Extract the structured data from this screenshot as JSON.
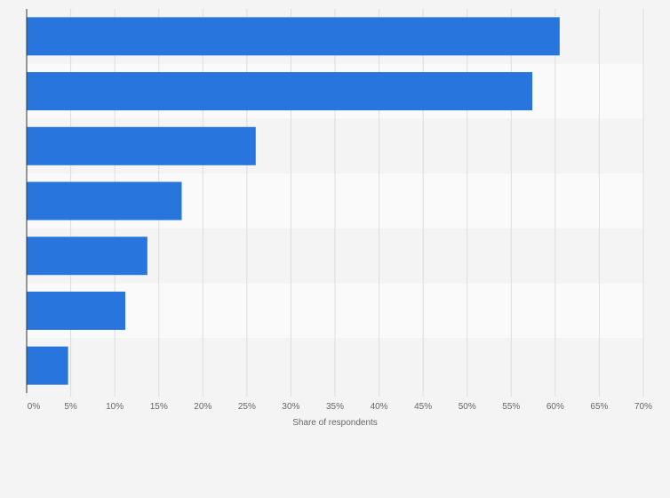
{
  "chart_data": {
    "type": "bar",
    "orientation": "horizontal",
    "categories": [
      "",
      "",
      "",
      "",
      "",
      "",
      ""
    ],
    "values": [
      60.5,
      57.4,
      26,
      17.6,
      13.7,
      11.2,
      4.7
    ],
    "xlim": [
      0,
      70
    ],
    "x_ticks": [
      "0%",
      "5%",
      "10%",
      "15%",
      "20%",
      "25%",
      "30%",
      "35%",
      "40%",
      "45%",
      "50%",
      "55%",
      "60%",
      "65%",
      "70%"
    ],
    "xlabel": "Share of respondents",
    "ylabel": "",
    "title": "",
    "grid": "vertical",
    "legend": "none",
    "bar_color": "#2876dd",
    "band_colors": [
      "#f4f4f4",
      "#fafafa"
    ],
    "grid_color": "#dddddd",
    "axis_color": "#333333"
  }
}
